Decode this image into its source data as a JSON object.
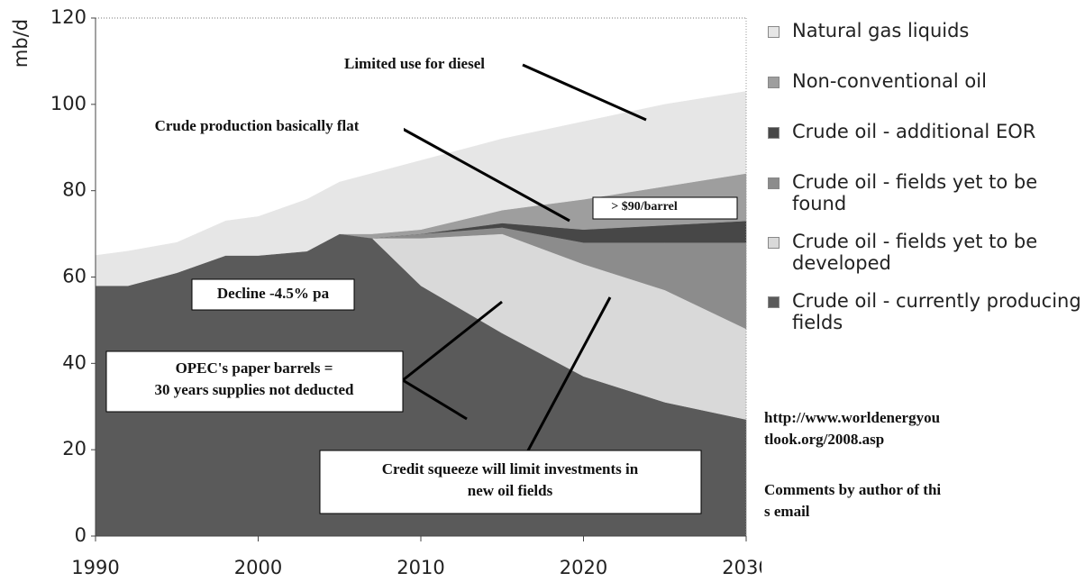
{
  "chart_data": {
    "type": "stacked-area",
    "ylabel": "mb/d",
    "x": [
      1990,
      1992,
      1995,
      1998,
      2000,
      2003,
      2005,
      2007,
      2010,
      2015,
      2020,
      2025,
      2030
    ],
    "series": [
      {
        "name": "Crude oil - currently producing fields",
        "color": "#5a5a5a",
        "values": [
          58,
          58,
          61,
          65,
          65,
          66,
          70,
          69,
          58,
          47,
          37,
          31,
          27
        ]
      },
      {
        "name": "Crude oil - fields yet to be developed",
        "color": "#d9d9d9",
        "values": [
          0,
          0,
          0,
          0,
          0,
          0,
          0,
          0,
          11,
          23,
          26,
          26,
          21
        ]
      },
      {
        "name": "Crude oil - fields yet to be found",
        "color": "#8c8c8c",
        "values": [
          0,
          0,
          0,
          0,
          0,
          0,
          0,
          0,
          1,
          1.5,
          5,
          11,
          20
        ]
      },
      {
        "name": "Crude oil - additional EOR",
        "color": "#474747",
        "values": [
          0,
          0,
          0,
          0,
          0,
          0,
          0,
          0,
          0,
          1,
          3,
          4,
          5
        ]
      },
      {
        "name": "Non-conventional oil",
        "color": "#9e9e9e",
        "values": [
          0,
          0,
          0,
          0,
          0,
          0,
          0,
          1,
          1,
          3,
          7,
          9,
          11
        ]
      },
      {
        "name": "Natural gas liquids",
        "color": "#e6e6e6",
        "values": [
          7,
          8,
          7,
          8,
          9,
          12,
          12,
          14,
          16,
          16.5,
          18,
          19,
          19
        ]
      }
    ],
    "xlim": [
      1990,
      2030
    ],
    "xticks": [
      1990,
      2000,
      2010,
      2020,
      2030
    ],
    "ylim": [
      0,
      120
    ],
    "yticks": [
      0,
      20,
      40,
      60,
      80,
      100,
      120
    ],
    "annotations": [
      [
        "Limited use for diesel"
      ],
      [
        "Crude production basically flat"
      ],
      [
        "> $90/barrel"
      ],
      [
        "Decline -4.5% pa"
      ],
      [
        "OPEC's paper barrels =",
        "30 years supplies not deducted"
      ],
      [
        "Credit squeeze will limit investments in",
        "new oil  fields"
      ]
    ],
    "source": "http://www.worldenergyoutlook.org/2008.asp",
    "comment": "Comments by author of this email"
  }
}
